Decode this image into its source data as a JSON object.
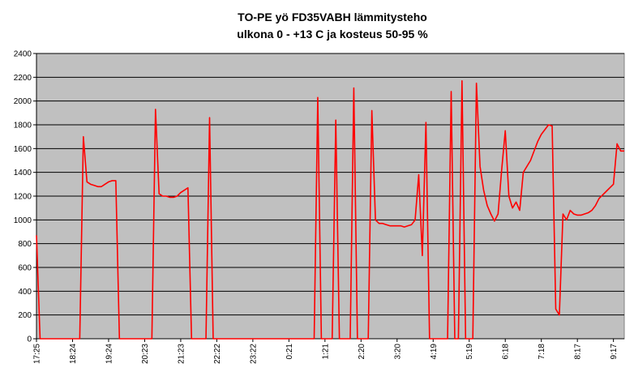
{
  "chart_data": {
    "type": "line",
    "title": [
      "TO-PE yö FD35VABH lämmitysteho",
      "ulkona 0 - +13 C ja kosteus 50-95 %"
    ],
    "categories": [
      "17:25",
      null,
      null,
      null,
      null,
      null,
      null,
      null,
      null,
      null,
      "18:24",
      null,
      null,
      null,
      null,
      null,
      null,
      null,
      null,
      null,
      "19:24",
      null,
      null,
      null,
      null,
      null,
      null,
      null,
      null,
      null,
      "20:23",
      null,
      null,
      null,
      null,
      null,
      null,
      null,
      null,
      null,
      "21:23",
      null,
      null,
      null,
      null,
      null,
      null,
      null,
      null,
      null,
      "22:22",
      null,
      null,
      null,
      null,
      null,
      null,
      null,
      null,
      null,
      "23:22",
      null,
      null,
      null,
      null,
      null,
      null,
      null,
      null,
      null,
      "0:21",
      null,
      null,
      null,
      null,
      null,
      null,
      null,
      null,
      null,
      "1:21",
      null,
      null,
      null,
      null,
      null,
      null,
      null,
      null,
      null,
      "2:20",
      null,
      null,
      null,
      null,
      null,
      null,
      null,
      null,
      null,
      "3:20",
      null,
      null,
      null,
      null,
      null,
      null,
      null,
      null,
      null,
      "4:19",
      null,
      null,
      null,
      null,
      null,
      null,
      null,
      null,
      null,
      "5:19",
      null,
      null,
      null,
      null,
      null,
      null,
      null,
      null,
      null,
      "6:18",
      null,
      null,
      null,
      null,
      null,
      null,
      null,
      null,
      null,
      "7:18",
      null,
      null,
      null,
      null,
      null,
      null,
      null,
      null,
      null,
      "8:17",
      null,
      null,
      null,
      null,
      null,
      null,
      null,
      null,
      null,
      "9:17",
      null,
      null,
      null
    ],
    "values": [
      870,
      0,
      0,
      0,
      0,
      0,
      0,
      0,
      0,
      0,
      0,
      0,
      0,
      1700,
      1320,
      1300,
      1290,
      1280,
      1280,
      1300,
      1320,
      1330,
      1330,
      0,
      0,
      0,
      0,
      0,
      0,
      0,
      0,
      0,
      0,
      1930,
      1220,
      1200,
      1200,
      1190,
      1190,
      1200,
      1230,
      1250,
      1270,
      0,
      0,
      0,
      0,
      0,
      1860,
      0,
      0,
      0,
      0,
      0,
      0,
      0,
      0,
      0,
      0,
      0,
      0,
      0,
      0,
      0,
      0,
      0,
      0,
      0,
      0,
      0,
      0,
      0,
      0,
      0,
      0,
      0,
      0,
      0,
      2030,
      0,
      0,
      0,
      0,
      1840,
      0,
      0,
      0,
      0,
      2110,
      0,
      0,
      0,
      0,
      1920,
      1000,
      970,
      970,
      960,
      950,
      950,
      950,
      950,
      940,
      950,
      960,
      1000,
      1380,
      700,
      1820,
      0,
      0,
      0,
      0,
      0,
      0,
      2080,
      0,
      0,
      2170,
      0,
      0,
      0,
      2150,
      1450,
      1250,
      1120,
      1050,
      990,
      1050,
      1420,
      1750,
      1200,
      1100,
      1150,
      1080,
      1400,
      1450,
      1500,
      1580,
      1660,
      1720,
      1760,
      1800,
      1790,
      250,
      200,
      1050,
      1000,
      1080,
      1050,
      1040,
      1040,
      1050,
      1060,
      1080,
      1120,
      1180,
      1210,
      1240,
      1270,
      1300,
      1640,
      1580,
      1580
    ],
    "color": "#ff0000",
    "ylim": [
      0,
      2400
    ],
    "yticks": [
      0,
      200,
      400,
      600,
      800,
      1000,
      1200,
      1400,
      1600,
      1800,
      2000,
      2200,
      2400
    ],
    "grid": true,
    "plot_background": "#c0c0c0"
  }
}
